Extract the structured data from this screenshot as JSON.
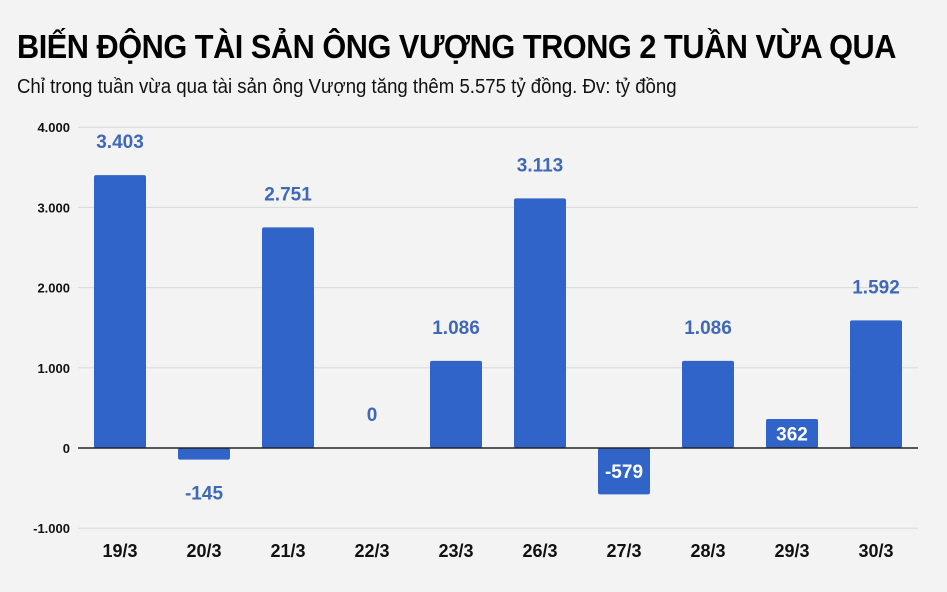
{
  "header": {
    "title": "BIẾN ĐỘNG TÀI SẢN ÔNG VƯỢNG TRONG 2 TUẦN VỪA QUA",
    "subtitle": "Chỉ trong tuần vừa qua tài sản ông Vượng tăng thêm 5.575 tỷ đồng. Đv: tỷ đồng"
  },
  "colors": {
    "background": "#f3f3f3",
    "bar": "#3164c8",
    "label": "#3f68b8",
    "label_inside": "#ffffff",
    "grid": "#d9d9d9",
    "axis": "#222222"
  },
  "chart_data": {
    "type": "bar",
    "title": "BIẾN ĐỘNG TÀI SẢN ÔNG VƯỢNG TRONG 2 TUẦN VỪA QUA",
    "subtitle": "Chỉ trong tuần vừa qua tài sản ông Vượng tăng thêm 5.575 tỷ đồng. Đv: tỷ đồng",
    "categories": [
      "19/3",
      "20/3",
      "21/3",
      "22/3",
      "23/3",
      "26/3",
      "27/3",
      "28/3",
      "29/3",
      "30/3"
    ],
    "values": [
      3403,
      -145,
      2751,
      0,
      1086,
      3113,
      -579,
      1086,
      362,
      1592
    ],
    "data_labels": [
      "3.403",
      "-145",
      "2.751",
      "0",
      "1.086",
      "3.113",
      "-579",
      "1.086",
      "362",
      "1.592"
    ],
    "xlabel": "",
    "ylabel": "",
    "ylim": [
      -1000,
      4000
    ],
    "yticks": [
      4000,
      3000,
      2000,
      1000,
      0,
      -1000
    ],
    "ytick_labels": [
      "4.000",
      "3.000",
      "2.000",
      "1.000",
      "0",
      "-1.000"
    ],
    "grid": true,
    "legend": null
  }
}
